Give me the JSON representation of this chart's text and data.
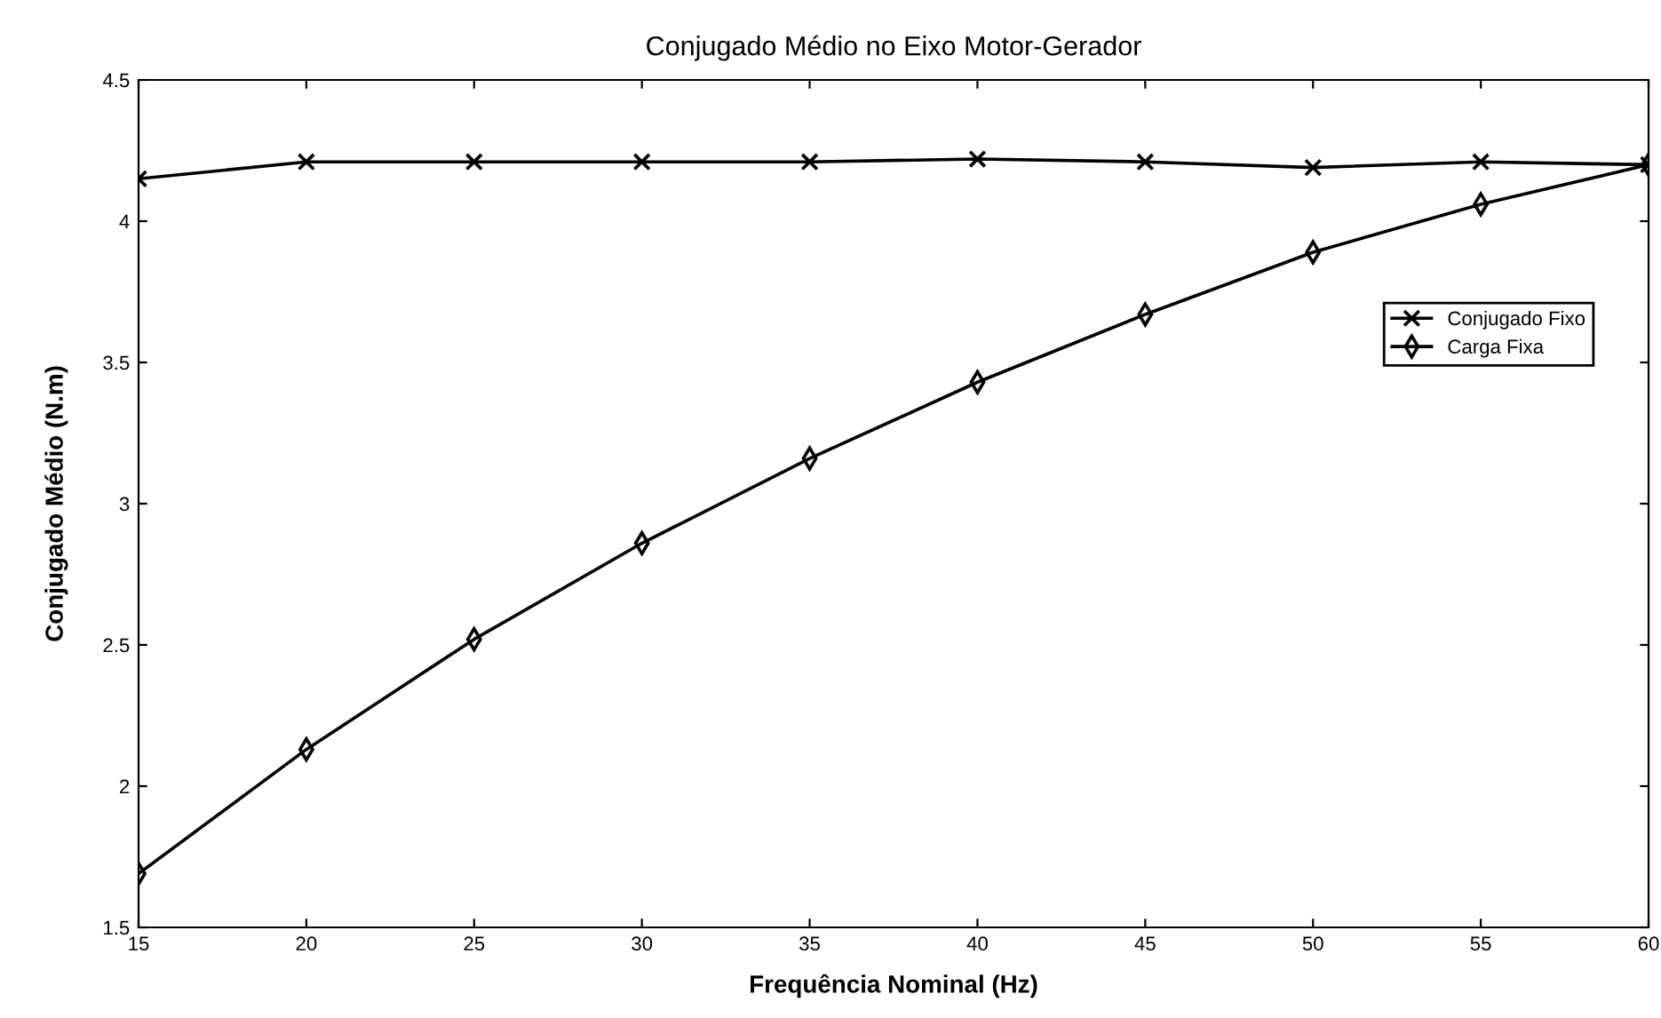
{
  "chart_data": {
    "type": "line",
    "title": "Conjugado Médio no Eixo Motor-Gerador",
    "xlabel": "Frequência Nominal (Hz)",
    "ylabel": "Conjugado Médio (N.m)",
    "x": [
      15,
      20,
      25,
      30,
      35,
      40,
      45,
      50,
      55,
      60
    ],
    "series": [
      {
        "name": "Conjugado Fixo",
        "color": "#000000",
        "marker": "cross",
        "values": [
          4.15,
          4.21,
          4.21,
          4.21,
          4.21,
          4.22,
          4.21,
          4.19,
          4.21,
          4.2
        ]
      },
      {
        "name": "Carga Fixa",
        "color": "#000000",
        "marker": "diamond",
        "values": [
          1.69,
          2.13,
          2.52,
          2.86,
          3.16,
          3.43,
          3.67,
          3.89,
          4.06,
          4.2
        ]
      }
    ],
    "xlim": [
      15,
      60
    ],
    "xticks": [
      15,
      20,
      25,
      30,
      35,
      40,
      45,
      50,
      55,
      60
    ],
    "ylim": [
      1.5,
      4.5
    ],
    "yticks": [
      1.5,
      2,
      2.5,
      3,
      3.5,
      4,
      4.5
    ],
    "grid": false,
    "legend": "right",
    "line_style": "solid"
  }
}
